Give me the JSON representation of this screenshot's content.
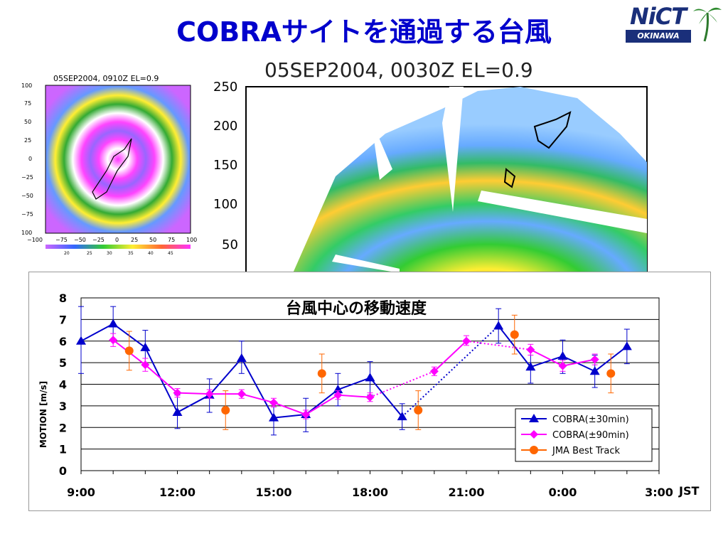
{
  "slide": {
    "title": "COBRAサイトを通過する台風",
    "logo_main": "NiCT",
    "logo_sub": "OKINAWA"
  },
  "small_radar": {
    "title": "05SEP2004, 0910Z  EL=0.9",
    "y_ticks": [
      "100",
      "75",
      "50",
      "25",
      "0",
      "−25",
      "−50",
      "−75",
      "100"
    ],
    "x_ticks": [
      "−100",
      "−75",
      "−50",
      "−25",
      "0",
      "25",
      "50",
      "75",
      "100"
    ],
    "colorbar_ticks": [
      "20",
      "25",
      "30",
      "35",
      "40",
      "45"
    ]
  },
  "big_radar": {
    "title": "05SEP2004, 0030Z  EL=0.9",
    "y_ticks": [
      "250",
      "200",
      "150",
      "100",
      "50"
    ]
  },
  "chart_data": {
    "type": "line",
    "title": "台風中心の移動速度",
    "ylabel": "MOTION [m/s]",
    "xlabel": "JST",
    "ylim": [
      0,
      8
    ],
    "y_ticks": [
      "0",
      "1",
      "2",
      "3",
      "4",
      "5",
      "6",
      "7",
      "8"
    ],
    "x_range": [
      9,
      27
    ],
    "x_ticks": [
      {
        "x": 9,
        "label": "9:00"
      },
      {
        "x": 12,
        "label": "12:00"
      },
      {
        "x": 15,
        "label": "15:00"
      },
      {
        "x": 18,
        "label": "18:00"
      },
      {
        "x": 21,
        "label": "21:00"
      },
      {
        "x": 24,
        "label": "0:00"
      },
      {
        "x": 27,
        "label": "3:00"
      }
    ],
    "grid": true,
    "legend_position": "bottom-right",
    "series": [
      {
        "name": "COBRA(±30min)",
        "color": "#0000cc",
        "marker": "triangle",
        "points": [
          {
            "x": 9,
            "y": 6.0,
            "lo": 4.5,
            "hi": 7.6
          },
          {
            "x": 10,
            "y": 6.8,
            "lo": 6.1,
            "hi": 7.6
          },
          {
            "x": 11,
            "y": 5.7,
            "lo": 4.9,
            "hi": 6.5
          },
          {
            "x": 12,
            "y": 2.7,
            "lo": 1.95,
            "hi": 3.5
          },
          {
            "x": 13,
            "y": 3.5,
            "lo": 2.7,
            "hi": 4.25
          },
          {
            "x": 14,
            "y": 5.2,
            "lo": 4.5,
            "hi": 6.0
          },
          {
            "x": 15,
            "y": 2.45,
            "lo": 1.65,
            "hi": 3.2
          },
          {
            "x": 16,
            "y": 2.6,
            "lo": 1.8,
            "hi": 3.35
          },
          {
            "x": 17,
            "y": 3.75,
            "lo": 3.0,
            "hi": 4.5
          },
          {
            "x": 18,
            "y": 4.3,
            "lo": 3.5,
            "hi": 5.05
          },
          {
            "x": 19,
            "y": 2.5,
            "lo": 1.9,
            "hi": 3.1
          },
          {
            "x": 22,
            "y": 6.7,
            "lo": 5.9,
            "hi": 7.5
          },
          {
            "x": 23,
            "y": 4.8,
            "lo": 4.05,
            "hi": 5.6
          },
          {
            "x": 24,
            "y": 5.3,
            "lo": 4.5,
            "hi": 6.05
          },
          {
            "x": 25,
            "y": 4.6,
            "lo": 3.85,
            "hi": 5.35
          },
          {
            "x": 26,
            "y": 5.75,
            "lo": 4.95,
            "hi": 6.55
          }
        ],
        "dotted_segments": [
          [
            10,
            11
          ]
        ]
      },
      {
        "name": "COBRA(±90min)",
        "color": "#ff00ff",
        "marker": "diamond",
        "points": [
          {
            "x": 10,
            "y": 6.05,
            "lo": 5.75,
            "hi": 6.35
          },
          {
            "x": 11,
            "y": 4.9,
            "lo": 4.6,
            "hi": 5.2
          },
          {
            "x": 12,
            "y": 3.6,
            "lo": 3.4,
            "hi": 3.8
          },
          {
            "x": 13,
            "y": 3.55,
            "lo": 3.35,
            "hi": 3.75
          },
          {
            "x": 14,
            "y": 3.55,
            "lo": 3.35,
            "hi": 3.75
          },
          {
            "x": 15,
            "y": 3.15,
            "lo": 2.95,
            "hi": 3.35
          },
          {
            "x": 16,
            "y": 2.6,
            "lo": 2.4,
            "hi": 2.8
          },
          {
            "x": 17,
            "y": 3.5,
            "lo": 3.3,
            "hi": 3.7
          },
          {
            "x": 18,
            "y": 3.4,
            "lo": 3.2,
            "hi": 3.6
          },
          {
            "x": 20,
            "y": 4.6,
            "lo": 4.4,
            "hi": 4.8
          },
          {
            "x": 21,
            "y": 6.0,
            "lo": 5.8,
            "hi": 6.25
          },
          {
            "x": 23,
            "y": 5.6,
            "lo": 5.35,
            "hi": 5.85
          },
          {
            "x": 24,
            "y": 4.85,
            "lo": 4.6,
            "hi": 5.1
          },
          {
            "x": 25,
            "y": 5.15,
            "lo": 4.9,
            "hi": 5.4
          }
        ],
        "dotted_segments": [
          [
            8,
            9
          ],
          [
            10,
            11
          ]
        ]
      },
      {
        "name": "JMA Best Track",
        "color": "#ff6600",
        "marker": "circle",
        "points": [
          {
            "x": 10.5,
            "y": 5.55,
            "lo": 4.65,
            "hi": 6.45
          },
          {
            "x": 13.5,
            "y": 2.8,
            "lo": 1.9,
            "hi": 3.7
          },
          {
            "x": 16.5,
            "y": 4.5,
            "lo": 3.6,
            "hi": 5.4
          },
          {
            "x": 19.5,
            "y": 2.8,
            "lo": 1.9,
            "hi": 3.7
          },
          {
            "x": 22.5,
            "y": 6.3,
            "lo": 5.4,
            "hi": 7.2
          },
          {
            "x": 25.5,
            "y": 4.5,
            "lo": 3.6,
            "hi": 5.4
          }
        ],
        "no_line": true
      }
    ]
  }
}
